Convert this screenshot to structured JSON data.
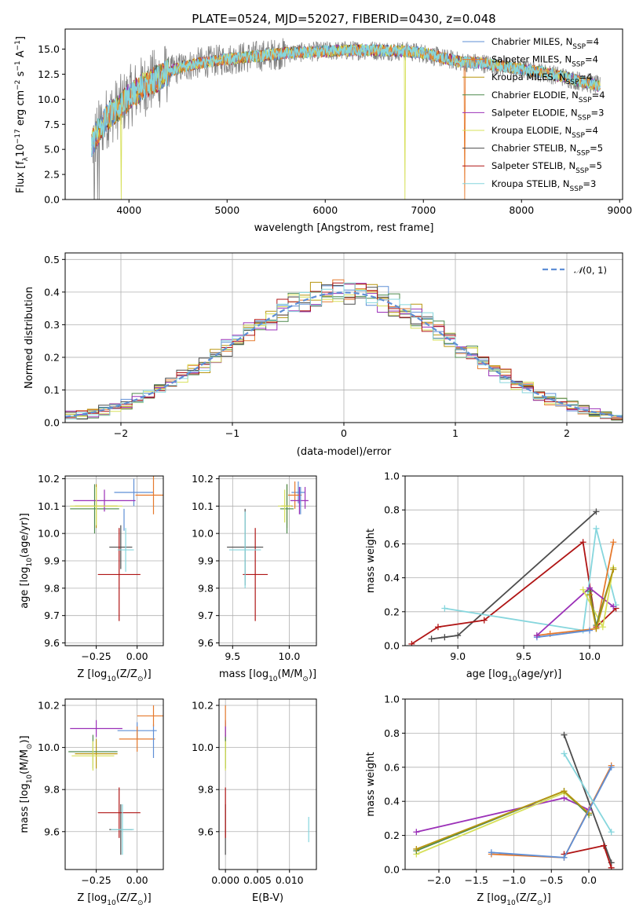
{
  "figure_title": "PLATE=0524, MJD=52027, FIBERID=0430, z=0.048",
  "series": [
    {
      "name": "Chabrier MILES, N",
      "sub": "SSP",
      "tail": "=4",
      "color": "#5f8fd6"
    },
    {
      "name": "Salpeter MILES, N",
      "sub": "SSP",
      "tail": "=4",
      "color": "#e67a2e"
    },
    {
      "name": "Kroupa MILES, N",
      "sub": "SSP",
      "tail": "=4",
      "color": "#b8950f"
    },
    {
      "name": "Chabrier ELODIE, N",
      "sub": "SSP",
      "tail": "=4",
      "color": "#4d8a4d"
    },
    {
      "name": "Salpeter ELODIE, N",
      "sub": "SSP",
      "tail": "=3",
      "color": "#9b30b8"
    },
    {
      "name": "Kroupa ELODIE, N",
      "sub": "SSP",
      "tail": "=4",
      "color": "#d7e05a"
    },
    {
      "name": "Chabrier STELIB, N",
      "sub": "SSP",
      "tail": "=5",
      "color": "#4d4d4d"
    },
    {
      "name": "Salpeter STELIB, N",
      "sub": "SSP",
      "tail": "=5",
      "color": "#b01515"
    },
    {
      "name": "Kroupa STELIB, N",
      "sub": "SSP",
      "tail": "=3",
      "color": "#86d6dd"
    }
  ],
  "chart_data": [
    {
      "type": "line",
      "id": "spectrum",
      "xlabel": "wavelength [Angstrom, rest frame]",
      "ylabel_main": "Flux [f",
      "ylabel_lambda": "λ",
      "ylabel_rest": "10",
      "ylabel_exp1": "−17",
      "ylabel_mid": " erg cm",
      "ylabel_exp2": "−2",
      "ylabel_mid2": " s",
      "ylabel_exp3": "−1",
      "ylabel_end": " A",
      "ylabel_exp4": "−1",
      "ylabel_close": "]",
      "xlim": [
        3350,
        9030
      ],
      "ylim": [
        0,
        17
      ],
      "xticks": [
        4000,
        5000,
        6000,
        7000,
        8000,
        9000
      ],
      "yticks": [
        "0.0",
        "2.5",
        "5.0",
        "7.5",
        "10.0",
        "12.5",
        "15.0"
      ],
      "ytick_values": [
        0,
        2.5,
        5,
        7.5,
        10,
        12.5,
        15
      ],
      "data_range": [
        3620,
        8800
      ],
      "envelope": {
        "x": [
          3620,
          3700,
          3800,
          3900,
          4000,
          4100,
          4200,
          4300,
          4400,
          4500,
          4700,
          5000,
          5300,
          5600,
          6000,
          6400,
          6800,
          7000,
          7200,
          7400,
          7600,
          7800,
          8000,
          8200,
          8400,
          8600,
          8800
        ],
        "y": [
          5.5,
          7.0,
          8.5,
          9.2,
          10.2,
          11.0,
          11.6,
          12.1,
          12.7,
          13.1,
          13.6,
          14.0,
          14.3,
          14.6,
          14.8,
          14.9,
          14.8,
          14.6,
          14.1,
          13.7,
          13.6,
          13.3,
          13.0,
          12.7,
          12.3,
          11.8,
          11.3
        ]
      },
      "drops": [
        {
          "x": 3920,
          "series": 5
        },
        {
          "x": 6810,
          "series": 5
        },
        {
          "x": 7420,
          "series": 1
        }
      ]
    },
    {
      "type": "bar",
      "id": "histogram",
      "xlabel": "(data-model)/error",
      "ylabel": "Normed distribution",
      "xlim": [
        -2.5,
        2.5
      ],
      "ylim": [
        0,
        0.52
      ],
      "xticks": [
        "−2",
        "−1",
        "0",
        "1",
        "2"
      ],
      "xtick_values": [
        -2,
        -1,
        0,
        1,
        2
      ],
      "yticks": [
        "0.0",
        "0.1",
        "0.2",
        "0.3",
        "0.4",
        "0.5"
      ],
      "ytick_values": [
        0,
        0.1,
        0.2,
        0.3,
        0.4,
        0.5
      ],
      "bin_width": 0.1,
      "normal_label": "(0, 1)",
      "normal_symbol": "𝒩",
      "normal_color": "#5f8fd6"
    },
    {
      "type": "scatter",
      "id": "age-vs-Z",
      "xlabel_pre": "Z [log",
      "xlabel_sub": "10",
      "xlabel_post": "(Z/Z",
      "xlabel_sun": "⊙",
      "xlabel_end": ")]",
      "ylabel_pre": "age  [log",
      "ylabel_sub": "10",
      "ylabel_post": "(age/yr)]",
      "xlim": [
        -0.44,
        0.16
      ],
      "ylim": [
        9.59,
        10.21
      ],
      "xticks": [
        "−0.25",
        "0.00"
      ],
      "xtick_values": [
        -0.25,
        0.0
      ],
      "yticks": [
        "9.6",
        "9.7",
        "9.8",
        "9.9",
        "10.0",
        "10.1",
        "10.2"
      ],
      "ytick_values": [
        9.6,
        9.7,
        9.8,
        9.9,
        10.0,
        10.1,
        10.2
      ],
      "points": [
        {
          "s": 0,
          "x": -0.02,
          "y": 10.15,
          "xerr": 0.12,
          "yerr": 0.05
        },
        {
          "s": 1,
          "x": 0.1,
          "y": 10.14,
          "xerr": 0.11,
          "yerr": 0.07
        },
        {
          "s": 2,
          "x": -0.25,
          "y": 10.1,
          "xerr": 0.13,
          "yerr": 0.08
        },
        {
          "s": 3,
          "x": -0.26,
          "y": 10.09,
          "xerr": 0.15,
          "yerr": 0.09
        },
        {
          "s": 4,
          "x": -0.2,
          "y": 10.12,
          "xerr": 0.19,
          "yerr": 0.04
        },
        {
          "s": 5,
          "x": -0.25,
          "y": 10.1,
          "xerr": 0.16,
          "yerr": 0.07
        },
        {
          "s": 6,
          "x": -0.1,
          "y": 9.95,
          "xerr": 0.07,
          "yerr": 0.08
        },
        {
          "s": 7,
          "x": -0.11,
          "y": 9.85,
          "xerr": 0.13,
          "yerr": 0.17
        },
        {
          "s": 8,
          "x": -0.07,
          "y": 9.94,
          "xerr": 0.05,
          "yerr": 0.08
        },
        {
          "s": 0,
          "x": -0.08,
          "y": 10.05,
          "xerr": 0.0,
          "yerr": 0.04
        }
      ]
    },
    {
      "type": "scatter",
      "id": "age-vs-mass",
      "xlabel_pre": "mass [log",
      "xlabel_sub": "10",
      "xlabel_post": "(M/M",
      "xlabel_sun": "⊙",
      "xlabel_end": ")]",
      "xlim": [
        9.38,
        10.24
      ],
      "ylim": [
        9.59,
        10.21
      ],
      "xticks": [
        "9.5",
        "10.0"
      ],
      "xtick_values": [
        9.5,
        10.0
      ],
      "yticks": [
        "9.6",
        "9.7",
        "9.8",
        "9.9",
        "10.0",
        "10.1",
        "10.2"
      ],
      "ytick_values": [
        9.6,
        9.7,
        9.8,
        9.9,
        10.0,
        10.1,
        10.2
      ],
      "points": [
        {
          "s": 0,
          "x": 10.08,
          "y": 10.15,
          "xerr": 0.06,
          "yerr": 0.04
        },
        {
          "s": 1,
          "x": 10.05,
          "y": 10.14,
          "xerr": 0.06,
          "yerr": 0.05
        },
        {
          "s": 2,
          "x": 9.98,
          "y": 10.1,
          "xerr": 0.05,
          "yerr": 0.08
        },
        {
          "s": 3,
          "x": 9.98,
          "y": 10.09,
          "xerr": 0.06,
          "yerr": 0.09
        },
        {
          "s": 4,
          "x": 10.09,
          "y": 10.12,
          "xerr": 0.08,
          "yerr": 0.05
        },
        {
          "s": 5,
          "x": 9.96,
          "y": 10.1,
          "xerr": 0.06,
          "yerr": 0.06
        },
        {
          "s": 6,
          "x": 9.61,
          "y": 9.95,
          "xerr": 0.16,
          "yerr": 0.14
        },
        {
          "s": 7,
          "x": 9.7,
          "y": 9.85,
          "xerr": 0.11,
          "yerr": 0.17
        },
        {
          "s": 8,
          "x": 9.61,
          "y": 9.94,
          "xerr": 0.14,
          "yerr": 0.14
        },
        {
          "s": 0,
          "x": 10.1,
          "y": 10.12,
          "xerr": 0.0,
          "yerr": 0.05
        },
        {
          "s": 4,
          "x": 10.14,
          "y": 10.13,
          "xerr": 0.0,
          "yerr": 0.04
        }
      ]
    },
    {
      "type": "line",
      "id": "massweight-vs-age",
      "xlabel_pre": "age  [log",
      "xlabel_sub": "10",
      "xlabel_post": "(age/yr)]",
      "ylabel": "mass weight",
      "xlim": [
        8.6,
        10.25
      ],
      "ylim": [
        0,
        1.0
      ],
      "xticks": [
        "8.5",
        "9.0",
        "9.5",
        "10.0"
      ],
      "xtick_values": [
        8.5,
        9.0,
        9.5,
        10.0
      ],
      "yticks": [
        "0.0",
        "0.2",
        "0.4",
        "0.6",
        "0.8",
        "1.0"
      ],
      "ytick_values": [
        0,
        0.2,
        0.4,
        0.6,
        0.8,
        1.0
      ],
      "lines": [
        {
          "s": 6,
          "x": [
            8.8,
            8.9,
            9.0,
            10.05
          ],
          "y": [
            0.04,
            0.05,
            0.06,
            0.79
          ]
        },
        {
          "s": 7,
          "x": [
            8.65,
            8.85,
            9.2,
            9.95,
            10.05,
            10.2
          ],
          "y": [
            0.01,
            0.11,
            0.15,
            0.61,
            0.11,
            0.22
          ]
        },
        {
          "s": 8,
          "x": [
            8.9,
            9.95,
            10.05,
            10.2
          ],
          "y": [
            0.22,
            0.09,
            0.69,
            0.24
          ]
        },
        {
          "s": 1,
          "x": [
            9.6,
            9.7,
            10.05,
            10.18
          ],
          "y": [
            0.06,
            0.07,
            0.1,
            0.61
          ]
        },
        {
          "s": 0,
          "x": [
            9.6,
            10.0
          ],
          "y": [
            0.05,
            0.09
          ]
        },
        {
          "s": 4,
          "x": [
            9.6,
            10.0,
            10.18
          ],
          "y": [
            0.06,
            0.34,
            0.23
          ]
        },
        {
          "s": 5,
          "x": [
            9.95,
            10.1,
            10.18
          ],
          "y": [
            0.33,
            0.11,
            0.46
          ]
        },
        {
          "s": 3,
          "x": [
            10.0,
            10.05,
            10.18
          ],
          "y": [
            0.32,
            0.12,
            0.45
          ]
        },
        {
          "s": 2,
          "x": [
            10.0,
            10.05,
            10.18
          ],
          "y": [
            0.3,
            0.1,
            0.45
          ]
        }
      ]
    },
    {
      "type": "scatter",
      "id": "mass-vs-Z",
      "xlabel_pre": "Z [log",
      "xlabel_sub": "10",
      "xlabel_post": "(Z/Z",
      "xlabel_sun": "⊙",
      "xlabel_end": ")]",
      "ylabel_pre": "mass [log",
      "ylabel_sub": "10",
      "ylabel_post": "(M/M",
      "ylabel_sun": "⊙",
      "ylabel_end": ")]",
      "xlim": [
        -0.44,
        0.16
      ],
      "ylim": [
        9.42,
        10.23
      ],
      "xticks": [
        "−0.25",
        "0.00"
      ],
      "xtick_values": [
        -0.25,
        0.0
      ],
      "yticks": [
        "9.6",
        "9.8",
        "10.0",
        "10.2"
      ],
      "ytick_values": [
        9.6,
        9.8,
        10.0,
        10.2
      ],
      "points": [
        {
          "s": 0,
          "x": 0.0,
          "y": 10.08,
          "xerr": 0.12,
          "yerr": 0.04
        },
        {
          "s": 1,
          "x": 0.0,
          "y": 10.04,
          "xerr": 0.11,
          "yerr": 0.06
        },
        {
          "s": 2,
          "x": -0.25,
          "y": 9.97,
          "xerr": 0.13,
          "yerr": 0.07
        },
        {
          "s": 3,
          "x": -0.27,
          "y": 9.98,
          "xerr": 0.15,
          "yerr": 0.08
        },
        {
          "s": 4,
          "x": -0.25,
          "y": 10.09,
          "xerr": 0.16,
          "yerr": 0.04
        },
        {
          "s": 5,
          "x": -0.27,
          "y": 9.96,
          "xerr": 0.13,
          "yerr": 0.07
        },
        {
          "s": 6,
          "x": -0.1,
          "y": 9.61,
          "xerr": 0.07,
          "yerr": 0.12
        },
        {
          "s": 7,
          "x": -0.11,
          "y": 9.69,
          "xerr": 0.13,
          "yerr": 0.12
        },
        {
          "s": 8,
          "x": -0.09,
          "y": 9.61,
          "xerr": 0.07,
          "yerr": 0.12
        },
        {
          "s": 0,
          "x": 0.1,
          "y": 10.03,
          "xerr": 0.0,
          "yerr": 0.08
        },
        {
          "s": 1,
          "x": 0.1,
          "y": 10.15,
          "xerr": 0.1,
          "yerr": 0.05
        }
      ]
    },
    {
      "type": "scatter",
      "id": "mass-vs-EBV",
      "xlabel": "E(B-V)",
      "xlim": [
        -0.001,
        0.0142
      ],
      "ylim": [
        9.42,
        10.23
      ],
      "xticks": [
        "0.000",
        "0.005",
        "0.010"
      ],
      "xtick_values": [
        0.0,
        0.005,
        0.01
      ],
      "yticks": [
        "9.6",
        "9.8",
        "10.0",
        "10.2"
      ],
      "ytick_values": [
        9.6,
        9.8,
        10.0,
        10.2
      ],
      "points": [
        {
          "s": 0,
          "x": 0.0,
          "y": 10.08,
          "xerr": 0.0,
          "yerr": 0.04
        },
        {
          "s": 1,
          "x": 0.0,
          "y": 10.04,
          "xerr": 0.0,
          "yerr": 0.06
        },
        {
          "s": 2,
          "x": 0.0,
          "y": 9.97,
          "xerr": 0.0,
          "yerr": 0.07
        },
        {
          "s": 3,
          "x": 0.0,
          "y": 9.98,
          "xerr": 0.0,
          "yerr": 0.08
        },
        {
          "s": 4,
          "x": 0.0,
          "y": 10.09,
          "xerr": 0.0,
          "yerr": 0.04
        },
        {
          "s": 5,
          "x": 0.0,
          "y": 9.96,
          "xerr": 0.0,
          "yerr": 0.07
        },
        {
          "s": 6,
          "x": 0.0,
          "y": 9.61,
          "xerr": 0.0,
          "yerr": 0.12
        },
        {
          "s": 7,
          "x": 0.0,
          "y": 9.69,
          "xerr": 0.0,
          "yerr": 0.12
        },
        {
          "s": 8,
          "x": 0.013,
          "y": 9.61,
          "xerr": 0.0,
          "yerr": 0.06
        },
        {
          "s": 1,
          "x": 0.0,
          "y": 10.15,
          "xerr": 0.0,
          "yerr": 0.05
        }
      ]
    },
    {
      "type": "line",
      "id": "massweight-vs-Z",
      "xlabel_pre": "Z [log",
      "xlabel_sub": "10",
      "xlabel_post": "(Z/Z",
      "xlabel_sun": "⊙",
      "xlabel_end": ")]",
      "ylabel": "mass weight",
      "xlim": [
        -2.45,
        0.45
      ],
      "ylim": [
        0,
        1.0
      ],
      "xticks": [
        "−2.0",
        "−1.5",
        "−1.0",
        "−0.5",
        "0.0"
      ],
      "xtick_values": [
        -2.0,
        -1.5,
        -1.0,
        -0.5,
        0.0
      ],
      "yticks": [
        "0.0",
        "0.2",
        "0.4",
        "0.6",
        "0.8",
        "1.0"
      ],
      "ytick_values": [
        0,
        0.2,
        0.4,
        0.6,
        0.8,
        1.0
      ],
      "lines": [
        {
          "s": 6,
          "x": [
            -0.33,
            0.3
          ],
          "y": [
            0.79,
            0.04
          ]
        },
        {
          "s": 7,
          "x": [
            -0.33,
            0.2,
            0.3
          ],
          "y": [
            0.09,
            0.14,
            0.01
          ]
        },
        {
          "s": 4,
          "x": [
            -2.3,
            -0.33,
            0.0
          ],
          "y": [
            0.22,
            0.42,
            0.35
          ]
        },
        {
          "s": 5,
          "x": [
            -2.3,
            -0.33,
            0.0
          ],
          "y": [
            0.09,
            0.45,
            0.33
          ]
        },
        {
          "s": 3,
          "x": [
            -2.3,
            -0.33,
            0.0
          ],
          "y": [
            0.11,
            0.46,
            0.32
          ]
        },
        {
          "s": 2,
          "x": [
            -2.3,
            -0.33,
            0.0
          ],
          "y": [
            0.12,
            0.46,
            0.33
          ]
        },
        {
          "s": 1,
          "x": [
            -1.3,
            -0.33,
            0.3
          ],
          "y": [
            0.09,
            0.07,
            0.61
          ]
        },
        {
          "s": 0,
          "x": [
            -1.3,
            -0.33,
            0.3
          ],
          "y": [
            0.1,
            0.07,
            0.6
          ]
        },
        {
          "s": 8,
          "x": [
            -0.33,
            0.3
          ],
          "y": [
            0.68,
            0.22
          ]
        }
      ]
    }
  ]
}
